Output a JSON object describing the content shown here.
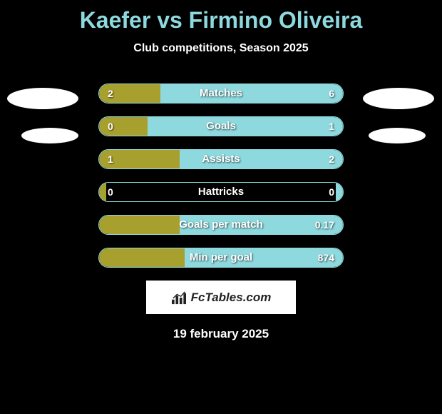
{
  "title": "Kaefer vs Firmino Oliveira",
  "subtitle": "Club competitions, Season 2025",
  "colors": {
    "background": "#000000",
    "title_color": "#8dd9de",
    "left_color": "#a8a02e",
    "right_color": "#8dd9de",
    "text_color": "#ffffff",
    "avatar_bg": "#ffffff"
  },
  "bars": [
    {
      "label": "Matches",
      "left_value": "2",
      "right_value": "6",
      "left_pct": 25,
      "right_pct": 75
    },
    {
      "label": "Goals",
      "left_value": "0",
      "right_value": "1",
      "left_pct": 20,
      "right_pct": 80
    },
    {
      "label": "Assists",
      "left_value": "1",
      "right_value": "2",
      "left_pct": 33,
      "right_pct": 67
    },
    {
      "label": "Hattricks",
      "left_value": "0",
      "right_value": "0",
      "left_pct": 3,
      "right_pct": 3
    },
    {
      "label": "Goals per match",
      "left_value": "",
      "right_value": "0.17",
      "left_pct": 33,
      "right_pct": 67
    },
    {
      "label": "Min per goal",
      "left_value": "",
      "right_value": "874",
      "left_pct": 35,
      "right_pct": 65
    }
  ],
  "footer": {
    "brand": "FcTables.com"
  },
  "date": "19 february 2025"
}
